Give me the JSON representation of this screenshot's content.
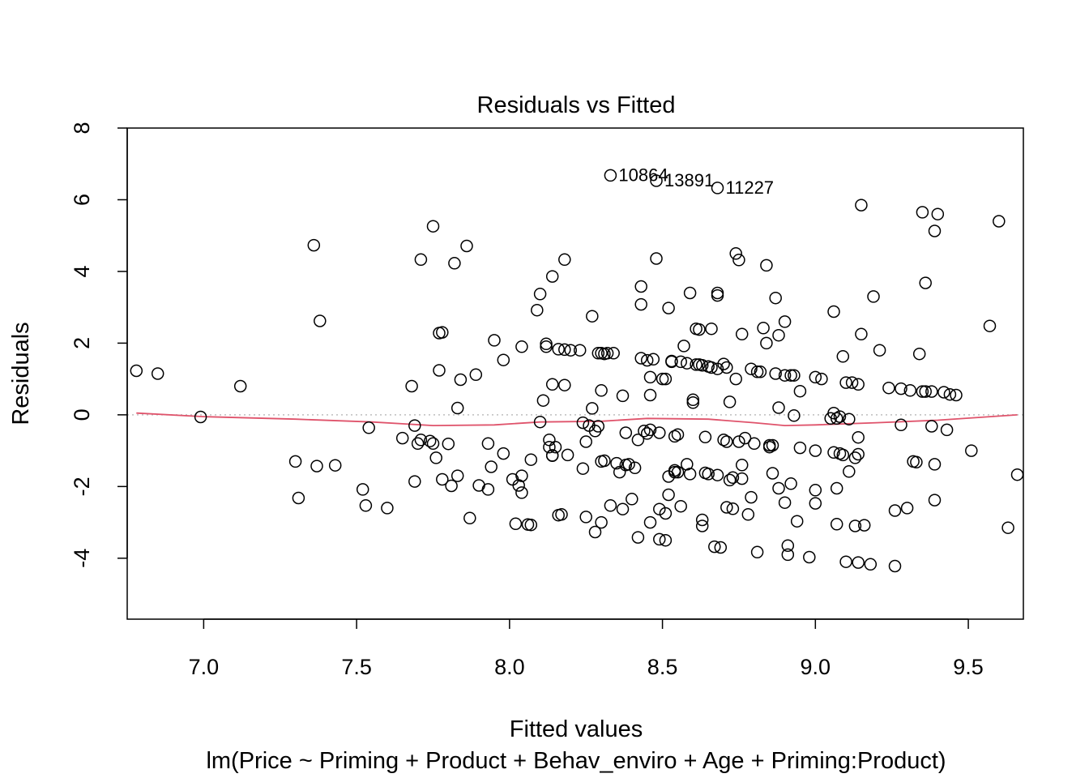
{
  "chart_data": {
    "type": "scatter",
    "title": "Residuals vs Fitted",
    "xlabel": "Fitted values",
    "ylabel": "Residuals",
    "subtitle": "lm(Price ~ Priming + Product + Behav_enviro + Age + Priming:Product)",
    "xlim": [
      6.75,
      9.68
    ],
    "ylim": [
      -5.7,
      8.0
    ],
    "x_ticks": [
      7.0,
      7.5,
      8.0,
      8.5,
      9.0,
      9.5
    ],
    "x_tick_labels": [
      "7.0",
      "7.5",
      "8.0",
      "8.5",
      "9.0",
      "9.5"
    ],
    "y_ticks": [
      -4,
      -2,
      0,
      2,
      4,
      6,
      8
    ],
    "y_tick_labels": [
      "-4",
      "-2",
      "0",
      "2",
      "4",
      "6",
      "8"
    ],
    "reference_line": {
      "y": 0,
      "style": "dotted",
      "color": "#bebebe"
    },
    "smoother": {
      "color": "#df536b",
      "points": [
        [
          6.78,
          0.05
        ],
        [
          7.0,
          -0.05
        ],
        [
          7.3,
          -0.12
        ],
        [
          7.55,
          -0.2
        ],
        [
          7.75,
          -0.3
        ],
        [
          7.95,
          -0.28
        ],
        [
          8.1,
          -0.2
        ],
        [
          8.3,
          -0.18
        ],
        [
          8.45,
          -0.1
        ],
        [
          8.65,
          -0.12
        ],
        [
          8.8,
          -0.22
        ],
        [
          8.9,
          -0.3
        ],
        [
          9.0,
          -0.28
        ],
        [
          9.2,
          -0.22
        ],
        [
          9.4,
          -0.15
        ],
        [
          9.66,
          0.0
        ]
      ]
    },
    "labeled_points": [
      {
        "label": "10864",
        "x": 8.33,
        "y": 6.68
      },
      {
        "label": "13891",
        "x": 8.48,
        "y": 6.53
      },
      {
        "label": "11227",
        "x": 8.68,
        "y": 6.33
      }
    ],
    "points": [
      [
        6.78,
        1.23
      ],
      [
        6.85,
        1.15
      ],
      [
        6.99,
        -0.06
      ],
      [
        7.12,
        0.8
      ],
      [
        7.3,
        -1.3
      ],
      [
        7.31,
        -2.32
      ],
      [
        7.36,
        4.73
      ],
      [
        7.37,
        -1.43
      ],
      [
        7.38,
        2.62
      ],
      [
        7.43,
        -1.41
      ],
      [
        7.52,
        -2.08
      ],
      [
        7.53,
        -2.53
      ],
      [
        7.54,
        -0.36
      ],
      [
        7.6,
        -2.6
      ],
      [
        7.65,
        -0.65
      ],
      [
        7.68,
        0.8
      ],
      [
        7.69,
        -1.86
      ],
      [
        7.69,
        -0.3
      ],
      [
        7.7,
        -0.8
      ],
      [
        7.71,
        4.33
      ],
      [
        7.71,
        -0.7
      ],
      [
        7.74,
        -0.73
      ],
      [
        7.75,
        -0.8
      ],
      [
        7.75,
        5.26
      ],
      [
        7.76,
        -1.2
      ],
      [
        7.77,
        2.28
      ],
      [
        7.77,
        1.24
      ],
      [
        7.78,
        2.3
      ],
      [
        7.78,
        -1.8
      ],
      [
        7.8,
        -0.81
      ],
      [
        7.81,
        -1.98
      ],
      [
        7.82,
        4.23
      ],
      [
        7.83,
        -1.7
      ],
      [
        7.83,
        0.19
      ],
      [
        7.84,
        0.98
      ],
      [
        7.86,
        4.71
      ],
      [
        7.87,
        -2.88
      ],
      [
        7.89,
        1.12
      ],
      [
        7.9,
        -1.97
      ],
      [
        7.93,
        -0.8
      ],
      [
        7.93,
        -2.08
      ],
      [
        7.94,
        -1.45
      ],
      [
        7.95,
        2.08
      ],
      [
        7.98,
        1.53
      ],
      [
        7.98,
        -1.08
      ],
      [
        8.01,
        -1.8
      ],
      [
        8.02,
        -3.04
      ],
      [
        8.03,
        -1.97
      ],
      [
        8.04,
        -1.7
      ],
      [
        8.04,
        -2.17
      ],
      [
        8.04,
        1.9
      ],
      [
        8.06,
        -3.06
      ],
      [
        8.07,
        -3.07
      ],
      [
        8.07,
        -1.25
      ],
      [
        8.09,
        2.92
      ],
      [
        8.1,
        3.37
      ],
      [
        8.1,
        -0.2
      ],
      [
        8.11,
        0.4
      ],
      [
        8.12,
        1.98
      ],
      [
        8.12,
        1.9
      ],
      [
        8.13,
        -0.7
      ],
      [
        8.13,
        -0.9
      ],
      [
        8.14,
        -1.13
      ],
      [
        8.14,
        -1.14
      ],
      [
        8.14,
        0.85
      ],
      [
        8.14,
        3.86
      ],
      [
        8.15,
        -0.9
      ],
      [
        8.16,
        1.83
      ],
      [
        8.16,
        -2.8
      ],
      [
        8.17,
        -2.78
      ],
      [
        8.18,
        1.82
      ],
      [
        8.18,
        0.83
      ],
      [
        8.18,
        4.33
      ],
      [
        8.19,
        -1.12
      ],
      [
        8.2,
        1.8
      ],
      [
        8.23,
        1.8
      ],
      [
        8.24,
        -0.22
      ],
      [
        8.24,
        -1.5
      ],
      [
        8.25,
        -0.75
      ],
      [
        8.25,
        -2.85
      ],
      [
        8.26,
        -0.3
      ],
      [
        8.27,
        2.75
      ],
      [
        8.27,
        0.18
      ],
      [
        8.28,
        -0.45
      ],
      [
        8.28,
        -3.27
      ],
      [
        8.29,
        1.72
      ],
      [
        8.29,
        -0.32
      ],
      [
        8.3,
        1.72
      ],
      [
        8.3,
        -1.3
      ],
      [
        8.3,
        -3.0
      ],
      [
        8.3,
        0.68
      ],
      [
        8.31,
        1.7
      ],
      [
        8.31,
        -1.28
      ],
      [
        8.32,
        1.72
      ],
      [
        8.33,
        -2.53
      ],
      [
        8.34,
        1.72
      ],
      [
        8.35,
        -1.35
      ],
      [
        8.36,
        -1.6
      ],
      [
        8.37,
        0.53
      ],
      [
        8.37,
        -2.63
      ],
      [
        8.38,
        -0.5
      ],
      [
        8.38,
        -1.4
      ],
      [
        8.39,
        -1.38
      ],
      [
        8.4,
        -2.35
      ],
      [
        8.41,
        -1.48
      ],
      [
        8.42,
        -3.42
      ],
      [
        8.42,
        -0.7
      ],
      [
        8.43,
        3.58
      ],
      [
        8.43,
        3.08
      ],
      [
        8.43,
        1.58
      ],
      [
        8.44,
        -0.45
      ],
      [
        8.45,
        1.52
      ],
      [
        8.45,
        -0.52
      ],
      [
        8.46,
        1.05
      ],
      [
        8.46,
        -0.42
      ],
      [
        8.46,
        -3.0
      ],
      [
        8.46,
        0.55
      ],
      [
        8.47,
        1.55
      ],
      [
        8.48,
        4.36
      ],
      [
        8.49,
        -2.63
      ],
      [
        8.49,
        -0.5
      ],
      [
        8.49,
        -3.47
      ],
      [
        8.5,
        1.0
      ],
      [
        8.51,
        1.0
      ],
      [
        8.51,
        -2.75
      ],
      [
        8.51,
        -3.5
      ],
      [
        8.52,
        -2.23
      ],
      [
        8.52,
        -1.72
      ],
      [
        8.52,
        2.98
      ],
      [
        8.53,
        1.5
      ],
      [
        8.53,
        1.48
      ],
      [
        8.54,
        -1.6
      ],
      [
        8.54,
        -0.6
      ],
      [
        8.54,
        -1.55
      ],
      [
        8.55,
        -1.6
      ],
      [
        8.55,
        -0.55
      ],
      [
        8.56,
        1.48
      ],
      [
        8.56,
        -2.55
      ],
      [
        8.57,
        1.92
      ],
      [
        8.58,
        1.44
      ],
      [
        8.58,
        -1.38
      ],
      [
        8.59,
        -1.65
      ],
      [
        8.59,
        3.4
      ],
      [
        8.6,
        0.42
      ],
      [
        8.6,
        0.34
      ],
      [
        8.61,
        1.4
      ],
      [
        8.61,
        2.4
      ],
      [
        8.62,
        2.38
      ],
      [
        8.62,
        1.4
      ],
      [
        8.63,
        -3.1
      ],
      [
        8.63,
        -2.93
      ],
      [
        8.63,
        1.38
      ],
      [
        8.64,
        -0.62
      ],
      [
        8.64,
        -1.62
      ],
      [
        8.65,
        1.35
      ],
      [
        8.65,
        -1.65
      ],
      [
        8.66,
        1.32
      ],
      [
        8.66,
        2.4
      ],
      [
        8.67,
        -3.68
      ],
      [
        8.68,
        1.28
      ],
      [
        8.68,
        3.4
      ],
      [
        8.68,
        3.33
      ],
      [
        8.68,
        -1.68
      ],
      [
        8.69,
        -3.7
      ],
      [
        8.7,
        1.42
      ],
      [
        8.7,
        -0.7
      ],
      [
        8.71,
        -0.75
      ],
      [
        8.71,
        -2.58
      ],
      [
        8.71,
        1.32
      ],
      [
        8.72,
        -1.82
      ],
      [
        8.72,
        0.36
      ],
      [
        8.73,
        -2.62
      ],
      [
        8.73,
        -1.75
      ],
      [
        8.74,
        1.0
      ],
      [
        8.74,
        4.5
      ],
      [
        8.75,
        4.32
      ],
      [
        8.75,
        -0.75
      ],
      [
        8.76,
        2.25
      ],
      [
        8.76,
        -1.4
      ],
      [
        8.76,
        -1.78
      ],
      [
        8.77,
        -0.65
      ],
      [
        8.78,
        -2.78
      ],
      [
        8.79,
        1.28
      ],
      [
        8.79,
        -2.3
      ],
      [
        8.8,
        -0.8
      ],
      [
        8.81,
        1.2
      ],
      [
        8.81,
        -3.83
      ],
      [
        8.82,
        1.2
      ],
      [
        8.83,
        2.42
      ],
      [
        8.84,
        4.17
      ],
      [
        8.84,
        2.0
      ],
      [
        8.85,
        -0.9
      ],
      [
        8.85,
        -0.85
      ],
      [
        8.86,
        -1.63
      ],
      [
        8.86,
        -0.85
      ],
      [
        8.87,
        3.26
      ],
      [
        8.87,
        1.15
      ],
      [
        8.88,
        -2.05
      ],
      [
        8.88,
        2.22
      ],
      [
        8.88,
        0.2
      ],
      [
        8.9,
        -2.45
      ],
      [
        8.9,
        2.6
      ],
      [
        8.9,
        1.1
      ],
      [
        8.91,
        -3.65
      ],
      [
        8.91,
        -3.9
      ],
      [
        8.92,
        1.1
      ],
      [
        8.92,
        -1.92
      ],
      [
        8.93,
        1.1
      ],
      [
        8.93,
        -0.02
      ],
      [
        8.94,
        -2.97
      ],
      [
        8.95,
        -0.92
      ],
      [
        8.95,
        0.66
      ],
      [
        8.98,
        -3.97
      ],
      [
        9.0,
        -2.1
      ],
      [
        9.0,
        -2.47
      ],
      [
        9.0,
        1.05
      ],
      [
        9.0,
        -1.0
      ],
      [
        9.02,
        1.0
      ],
      [
        9.05,
        -0.1
      ],
      [
        9.06,
        0.05
      ],
      [
        9.06,
        -1.05
      ],
      [
        9.06,
        2.88
      ],
      [
        9.07,
        -3.05
      ],
      [
        9.07,
        -2.05
      ],
      [
        9.07,
        -0.1
      ],
      [
        9.08,
        -1.08
      ],
      [
        9.08,
        -0.05
      ],
      [
        9.09,
        -1.12
      ],
      [
        9.09,
        1.63
      ],
      [
        9.1,
        0.9
      ],
      [
        9.1,
        -4.1
      ],
      [
        9.11,
        -1.58
      ],
      [
        9.11,
        -0.12
      ],
      [
        9.12,
        0.9
      ],
      [
        9.13,
        -1.2
      ],
      [
        9.13,
        -3.1
      ],
      [
        9.14,
        -0.63
      ],
      [
        9.14,
        0.85
      ],
      [
        9.14,
        -4.12
      ],
      [
        9.14,
        -1.1
      ],
      [
        9.15,
        5.85
      ],
      [
        9.15,
        2.25
      ],
      [
        9.16,
        -3.08
      ],
      [
        9.18,
        -4.17
      ],
      [
        9.19,
        3.3
      ],
      [
        9.21,
        1.8
      ],
      [
        9.24,
        0.75
      ],
      [
        9.26,
        -4.22
      ],
      [
        9.26,
        -2.67
      ],
      [
        9.28,
        -0.28
      ],
      [
        9.28,
        0.73
      ],
      [
        9.3,
        -2.6
      ],
      [
        9.31,
        0.68
      ],
      [
        9.32,
        -1.3
      ],
      [
        9.33,
        -1.32
      ],
      [
        9.34,
        1.7
      ],
      [
        9.35,
        5.65
      ],
      [
        9.35,
        0.65
      ],
      [
        9.36,
        3.68
      ],
      [
        9.36,
        0.65
      ],
      [
        9.38,
        -0.32
      ],
      [
        9.38,
        0.65
      ],
      [
        9.39,
        -2.38
      ],
      [
        9.39,
        -1.38
      ],
      [
        9.39,
        5.13
      ],
      [
        9.4,
        5.6
      ],
      [
        9.42,
        0.63
      ],
      [
        9.43,
        -0.42
      ],
      [
        9.44,
        0.57
      ],
      [
        9.46,
        0.55
      ],
      [
        9.51,
        -1.0
      ],
      [
        9.57,
        2.48
      ],
      [
        9.6,
        5.4
      ],
      [
        9.63,
        -3.15
      ],
      [
        9.66,
        -1.67
      ]
    ]
  }
}
